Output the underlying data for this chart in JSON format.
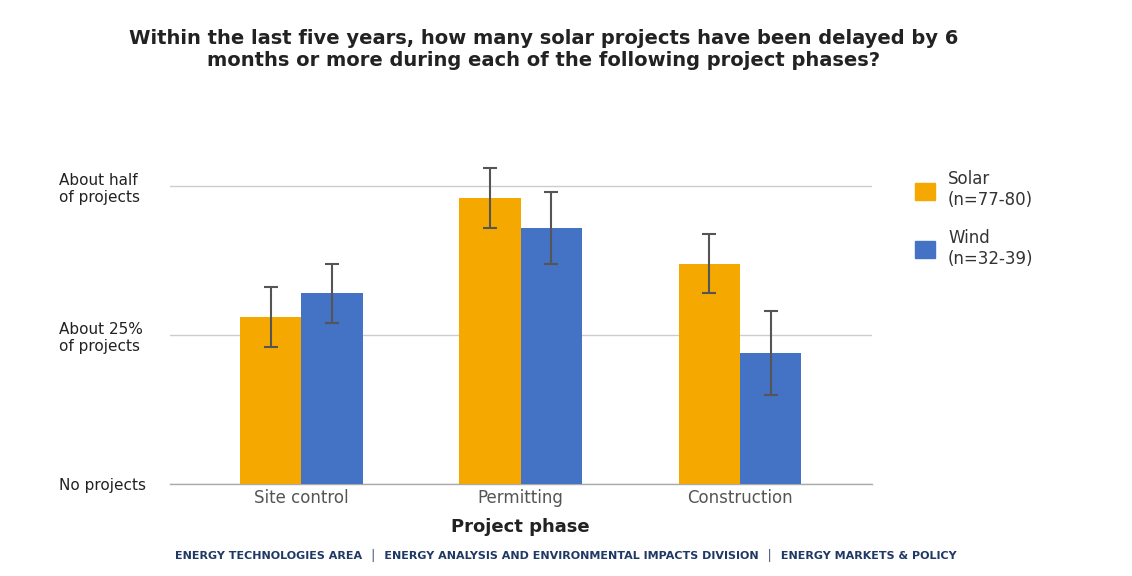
{
  "title": "Within the last five years, how many solar projects have been delayed by 6\nmonths or more during each of the following project phases?",
  "xlabel": "Project phase",
  "categories": [
    "Site control",
    "Permitting",
    "Construction"
  ],
  "solar_values": [
    0.28,
    0.48,
    0.37
  ],
  "wind_values": [
    0.32,
    0.43,
    0.22
  ],
  "solar_errors": [
    0.05,
    0.05,
    0.05
  ],
  "wind_errors": [
    0.05,
    0.06,
    0.07
  ],
  "solar_color": "#F5A800",
  "wind_color": "#4472C4",
  "yticks": [
    0,
    0.25,
    0.5
  ],
  "ytick_labels": [
    "No projects",
    "About 25%\nof projects",
    "About half\nof projects"
  ],
  "solar_label": "Solar\n(n=77-80)",
  "wind_label": "Wind\n(n=32-39)",
  "footer_parts": [
    "Energy Technologies Area",
    "Energy Analysis and Environmental Impacts Division",
    "Energy Markets & Policy"
  ],
  "bar_width": 0.28,
  "background_color": "#FFFFFF",
  "title_fontsize": 14,
  "axis_label_fontsize": 13,
  "tick_fontsize": 11,
  "xtick_fontsize": 12,
  "legend_fontsize": 12,
  "footer_fontsize": 8,
  "ylim_max": 0.6
}
